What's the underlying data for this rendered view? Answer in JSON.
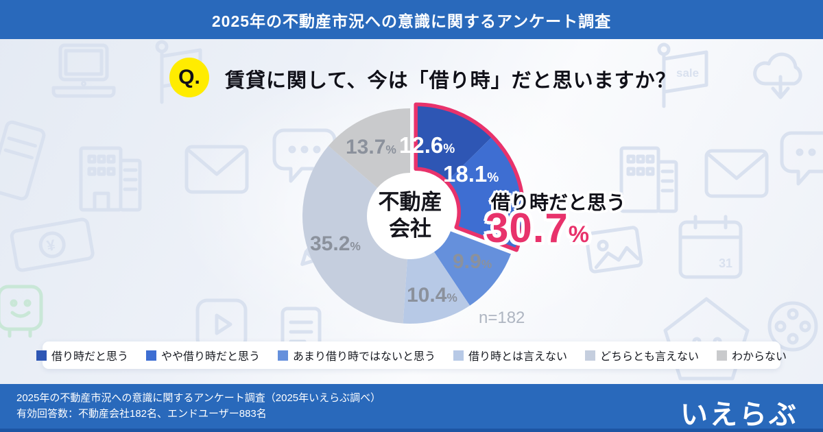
{
  "header": {
    "title": "2025年の不動産市況への意識に関するアンケート調査"
  },
  "question": {
    "q_label": "Q.",
    "text": "賃貸に関して、今は「借り時」だと思いますか？"
  },
  "chart_data": {
    "type": "pie",
    "subtype": "donut",
    "title": "賃貸に関して、今は「借り時」だと思いますか？",
    "center_label_line1": "不動産",
    "center_label_line2": "会社",
    "n_label": "n=182",
    "percent_sign": "%",
    "series": [
      {
        "label": "借り時だと思う",
        "value": 12.6,
        "color": "#2e56b4"
      },
      {
        "label": "やや借り時だと思う",
        "value": 18.1,
        "color": "#3e6ed2"
      },
      {
        "label": "あまり借り時ではないと思う",
        "value": 9.9,
        "color": "#6590dc"
      },
      {
        "label": "借り時とは言えない",
        "value": 10.4,
        "color": "#b7c9e6"
      },
      {
        "label": "どちらとも言えない",
        "value": 35.2,
        "color": "#c5cede"
      },
      {
        "label": "わからない",
        "value": 13.7,
        "color": "#c9cacc"
      }
    ],
    "highlight": {
      "label": "借り時だと思う",
      "value": 30.7,
      "slice_indexes": [
        0,
        1
      ],
      "color": "#e8326b"
    },
    "legend_position": "bottom"
  },
  "footer": {
    "line1": "2025年の不動産市況への意識に関するアンケート調査（2025年いえらぶ調べ）",
    "line2": "有効回答数：不動産会社182名、エンドユーザー883名",
    "logo": "いえらぶ"
  },
  "decor": {
    "sale_text": "sale",
    "calendar_text": "31",
    "yen_text": "¥"
  }
}
